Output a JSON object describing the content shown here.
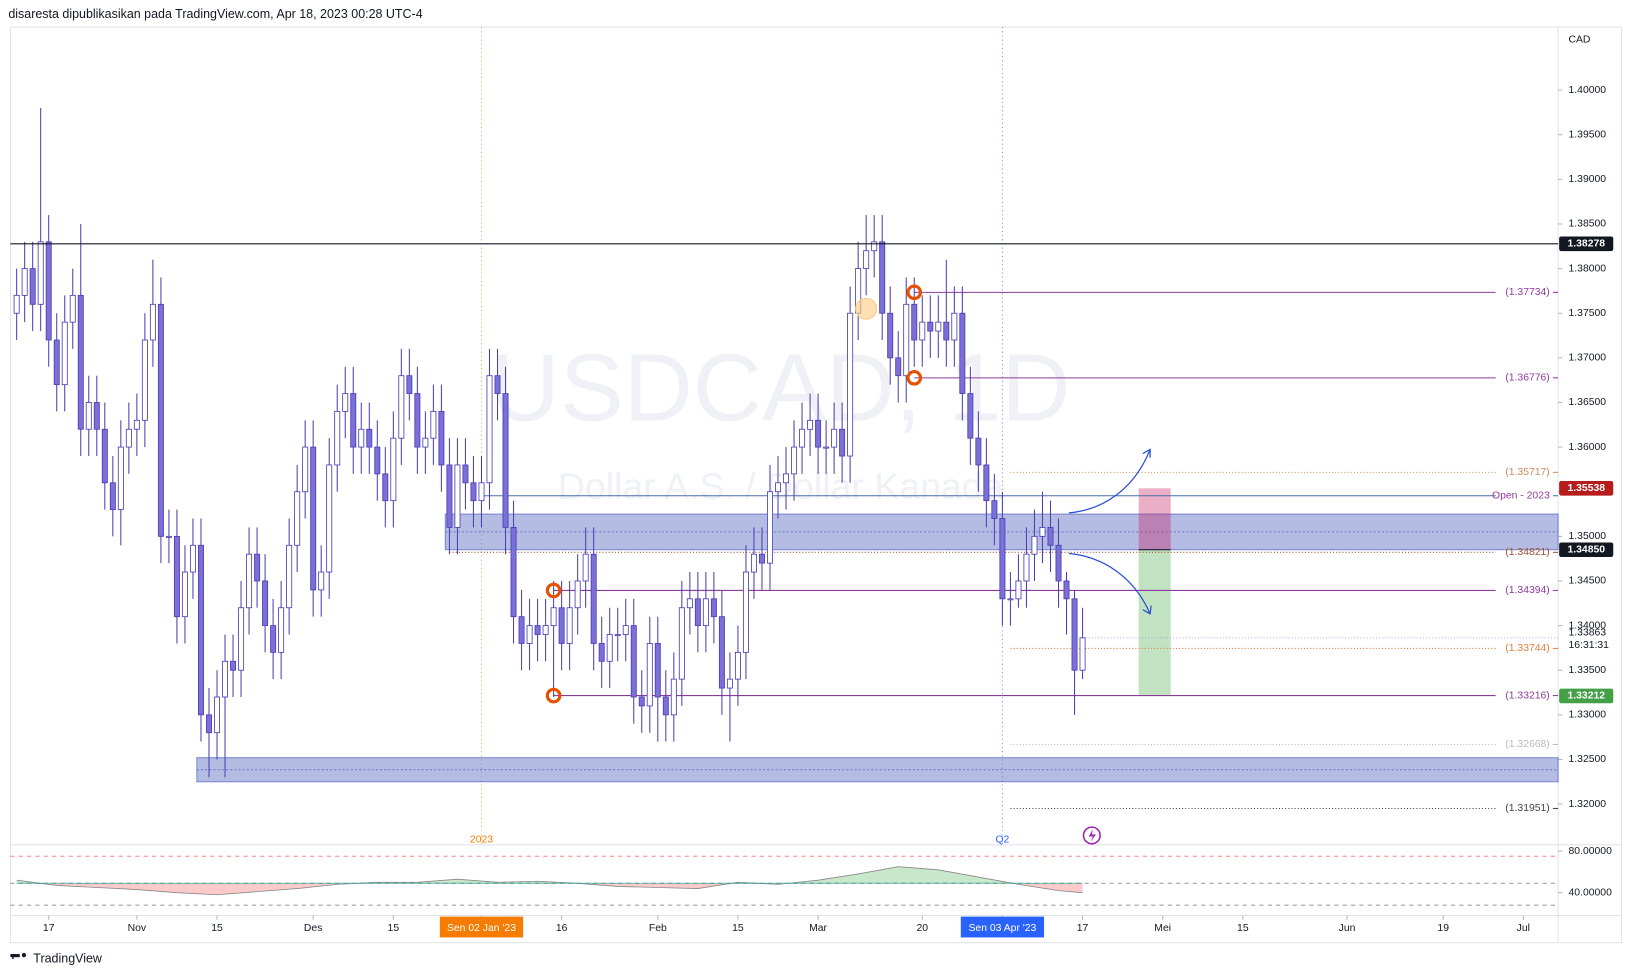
{
  "chart_data": {
    "type": "candlestick",
    "header": "disaresta dipublikasikan pada TradingView.com, Apr 18, 2023 00:28 UTC-4",
    "footer": "TradingView",
    "currency": "CAD",
    "watermark": "USDCAD, 1D",
    "watermark_sub": "Dollar A.S. / Dollar Kanada",
    "up_color": "#ffffff",
    "down_color": "#7b6fd8",
    "outline_color": "#4b3fb5",
    "open": [
      1.375,
      1.377,
      1.38,
      1.376,
      1.383,
      1.372,
      1.367,
      1.374,
      1.377,
      1.362,
      1.365,
      1.362,
      1.356,
      1.353,
      1.36,
      1.362,
      1.363,
      1.372,
      1.376,
      1.35,
      1.35,
      1.341,
      1.346,
      1.349,
      1.33,
      1.328,
      1.332,
      1.336,
      1.335,
      1.342,
      1.348,
      1.345,
      1.34,
      1.337,
      1.342,
      1.349,
      1.355,
      1.36,
      1.344,
      1.346,
      1.358,
      1.364,
      1.366,
      1.36,
      1.362,
      1.36,
      1.357,
      1.354,
      1.361,
      1.368,
      1.366,
      1.36,
      1.361,
      1.364,
      1.358,
      1.351,
      1.358,
      1.356,
      1.354,
      1.356,
      1.368,
      1.366,
      1.351,
      1.341,
      1.338,
      1.34,
      1.339,
      1.34,
      1.342,
      1.338,
      1.342,
      1.345,
      1.348,
      1.338,
      1.336,
      1.339,
      1.339,
      1.34,
      1.332,
      1.331,
      1.338,
      1.332,
      1.33,
      1.334,
      1.342,
      1.343,
      1.34,
      1.343,
      1.341,
      1.333,
      1.334,
      1.337,
      1.346,
      1.348,
      1.347,
      1.355,
      1.356,
      1.357,
      1.36,
      1.362,
      1.363,
      1.36,
      1.36,
      1.362,
      1.359,
      1.375,
      1.38,
      1.382,
      1.383,
      1.375,
      1.37,
      1.368,
      1.376,
      1.372,
      1.374,
      1.373,
      1.374,
      1.372,
      1.375,
      1.366,
      1.361,
      1.358,
      1.354,
      1.352,
      1.343,
      1.343,
      1.345,
      1.348,
      1.35,
      1.351,
      1.349,
      1.345,
      1.343,
      1.335
    ],
    "high": [
      1.38,
      1.383,
      1.383,
      1.398,
      1.386,
      1.375,
      1.377,
      1.38,
      1.385,
      1.368,
      1.368,
      1.365,
      1.359,
      1.363,
      1.365,
      1.366,
      1.375,
      1.381,
      1.379,
      1.353,
      1.353,
      1.349,
      1.352,
      1.352,
      1.333,
      1.335,
      1.339,
      1.339,
      1.345,
      1.351,
      1.351,
      1.348,
      1.343,
      1.345,
      1.352,
      1.358,
      1.363,
      1.363,
      1.349,
      1.361,
      1.367,
      1.369,
      1.369,
      1.365,
      1.365,
      1.363,
      1.36,
      1.364,
      1.371,
      1.371,
      1.369,
      1.364,
      1.367,
      1.367,
      1.361,
      1.361,
      1.361,
      1.359,
      1.359,
      1.371,
      1.371,
      1.369,
      1.354,
      1.344,
      1.343,
      1.343,
      1.343,
      1.345,
      1.345,
      1.345,
      1.348,
      1.351,
      1.351,
      1.341,
      1.342,
      1.342,
      1.343,
      1.343,
      1.335,
      1.341,
      1.341,
      1.335,
      1.337,
      1.345,
      1.346,
      1.346,
      1.346,
      1.346,
      1.344,
      1.337,
      1.34,
      1.349,
      1.351,
      1.351,
      1.358,
      1.359,
      1.36,
      1.363,
      1.365,
      1.366,
      1.366,
      1.363,
      1.365,
      1.365,
      1.378,
      1.383,
      1.386,
      1.386,
      1.386,
      1.378,
      1.373,
      1.379,
      1.379,
      1.377,
      1.377,
      1.377,
      1.381,
      1.378,
      1.378,
      1.369,
      1.364,
      1.361,
      1.357,
      1.355,
      1.346,
      1.348,
      1.351,
      1.353,
      1.355,
      1.354,
      1.352,
      1.346,
      1.344,
      1.342
    ],
    "low": [
      1.372,
      1.374,
      1.373,
      1.373,
      1.369,
      1.364,
      1.364,
      1.371,
      1.359,
      1.359,
      1.359,
      1.353,
      1.35,
      1.349,
      1.357,
      1.359,
      1.36,
      1.369,
      1.347,
      1.347,
      1.338,
      1.338,
      1.343,
      1.327,
      1.323,
      1.325,
      1.323,
      1.332,
      1.332,
      1.339,
      1.342,
      1.337,
      1.334,
      1.334,
      1.339,
      1.346,
      1.352,
      1.341,
      1.341,
      1.343,
      1.355,
      1.361,
      1.357,
      1.357,
      1.357,
      1.354,
      1.351,
      1.351,
      1.358,
      1.363,
      1.357,
      1.357,
      1.358,
      1.355,
      1.348,
      1.348,
      1.353,
      1.351,
      1.351,
      1.353,
      1.363,
      1.348,
      1.338,
      1.335,
      1.335,
      1.336,
      1.336,
      1.332,
      1.335,
      1.335,
      1.339,
      1.342,
      1.335,
      1.333,
      1.333,
      1.336,
      1.336,
      1.329,
      1.328,
      1.328,
      1.327,
      1.327,
      1.327,
      1.331,
      1.339,
      1.337,
      1.337,
      1.338,
      1.33,
      1.327,
      1.331,
      1.334,
      1.343,
      1.344,
      1.344,
      1.352,
      1.353,
      1.354,
      1.357,
      1.359,
      1.357,
      1.357,
      1.357,
      1.356,
      1.356,
      1.372,
      1.377,
      1.379,
      1.372,
      1.367,
      1.365,
      1.365,
      1.369,
      1.369,
      1.37,
      1.37,
      1.369,
      1.369,
      1.363,
      1.358,
      1.355,
      1.351,
      1.349,
      1.34,
      1.34,
      1.342,
      1.342,
      1.345,
      1.347,
      1.346,
      1.342,
      1.339,
      1.33,
      1.334
    ],
    "close": [
      1.377,
      1.38,
      1.376,
      1.383,
      1.372,
      1.367,
      1.374,
      1.377,
      1.362,
      1.365,
      1.362,
      1.356,
      1.353,
      1.36,
      1.362,
      1.363,
      1.372,
      1.376,
      1.35,
      1.35,
      1.341,
      1.346,
      1.349,
      1.33,
      1.328,
      1.332,
      1.336,
      1.335,
      1.342,
      1.348,
      1.345,
      1.34,
      1.337,
      1.342,
      1.349,
      1.355,
      1.36,
      1.344,
      1.346,
      1.358,
      1.364,
      1.366,
      1.36,
      1.362,
      1.36,
      1.357,
      1.354,
      1.361,
      1.368,
      1.366,
      1.36,
      1.361,
      1.364,
      1.358,
      1.351,
      1.358,
      1.356,
      1.354,
      1.356,
      1.368,
      1.366,
      1.351,
      1.341,
      1.338,
      1.34,
      1.339,
      1.34,
      1.342,
      1.338,
      1.342,
      1.345,
      1.348,
      1.338,
      1.336,
      1.339,
      1.339,
      1.34,
      1.332,
      1.331,
      1.338,
      1.332,
      1.33,
      1.334,
      1.342,
      1.343,
      1.34,
      1.343,
      1.341,
      1.333,
      1.334,
      1.337,
      1.346,
      1.348,
      1.347,
      1.355,
      1.356,
      1.357,
      1.36,
      1.362,
      1.363,
      1.36,
      1.36,
      1.362,
      1.359,
      1.375,
      1.38,
      1.382,
      1.383,
      1.375,
      1.37,
      1.368,
      1.376,
      1.372,
      1.374,
      1.373,
      1.374,
      1.372,
      1.375,
      1.366,
      1.361,
      1.358,
      1.354,
      1.352,
      1.343,
      1.343,
      1.345,
      1.348,
      1.35,
      1.351,
      1.349,
      1.345,
      1.343,
      1.335,
      1.33863
    ],
    "last_label": "1.33863",
    "countdown": "16:31:31",
    "xlim": [
      0,
      192
    ],
    "xticks": [
      {
        "value": 4,
        "label": "17"
      },
      {
        "value": 15,
        "label": "Nov"
      },
      {
        "value": 25,
        "label": "15"
      },
      {
        "value": 37,
        "label": "Des"
      },
      {
        "value": 47,
        "label": "15"
      },
      {
        "value": 58,
        "label": "Sen 02 Jan '23",
        "color": "#f57c00"
      },
      {
        "value": 68,
        "label": "16"
      },
      {
        "value": 80,
        "label": "Feb"
      },
      {
        "value": 90,
        "label": "15"
      },
      {
        "value": 100,
        "label": "Mar"
      },
      {
        "value": 113,
        "label": "20"
      },
      {
        "value": 123,
        "label": "Sen 03 Apr '23",
        "color": "#2962ff"
      },
      {
        "value": 133,
        "label": "17"
      },
      {
        "value": 143,
        "label": "Mei"
      },
      {
        "value": 153,
        "label": "15"
      },
      {
        "value": 166,
        "label": "Jun"
      },
      {
        "value": 178,
        "label": "19"
      },
      {
        "value": 188,
        "label": "Jul"
      }
    ],
    "session_marks": [
      {
        "x": 58,
        "label": "2023",
        "color": "#f57c00"
      },
      {
        "x": 123,
        "label": "Q2",
        "color": "#2962ff"
      }
    ],
    "ylim": [
      1.318,
      1.4066
    ],
    "yticks": [
      {
        "value": 1.32,
        "label": "1.32000"
      },
      {
        "value": 1.325,
        "label": "1.32500"
      },
      {
        "value": 1.33,
        "label": "1.33000"
      },
      {
        "value": 1.335,
        "label": "1.33500"
      },
      {
        "value": 1.34,
        "label": "1.34000"
      },
      {
        "value": 1.345,
        "label": "1.34500"
      },
      {
        "value": 1.35,
        "label": "1.35000"
      },
      {
        "value": 1.355,
        "label": "1.35500"
      },
      {
        "value": 1.36,
        "label": "1.36000"
      },
      {
        "value": 1.365,
        "label": "1.36500"
      },
      {
        "value": 1.37,
        "label": "1.37000"
      },
      {
        "value": 1.375,
        "label": "1.37500"
      },
      {
        "value": 1.38,
        "label": "1.38000"
      },
      {
        "value": 1.385,
        "label": "1.38500"
      },
      {
        "value": 1.39,
        "label": "1.39000"
      },
      {
        "value": 1.395,
        "label": "1.39500"
      },
      {
        "value": 1.4,
        "label": "1.40000"
      }
    ],
    "levels": [
      {
        "value": 1.37734,
        "label": "(1.37734)",
        "start": 112,
        "color": "#8e3a9d",
        "dash": false
      },
      {
        "value": 1.36776,
        "label": "(1.36776)",
        "start": 112,
        "color": "#8e3a9d",
        "dash": false
      },
      {
        "value": 1.35717,
        "label": "(1.35717)",
        "start": 124,
        "color": "#d08a5a",
        "dash": true
      },
      {
        "value": 1.35455,
        "label": "Open - 2023",
        "start": 58,
        "color": "#4a6fa5",
        "dash": false
      },
      {
        "value": 1.34821,
        "label": "(1.34821)",
        "start": 54,
        "color": "#a0522d",
        "dash": true
      },
      {
        "value": 1.34394,
        "label": "(1.34394)",
        "start": 67,
        "color": "#8e3a9d",
        "dash": false
      },
      {
        "value": 1.33744,
        "label": "(1.33744)",
        "start": 124,
        "color": "#e08040",
        "dash": true
      },
      {
        "value": 1.33216,
        "label": "(1.33216)",
        "start": 67,
        "color": "#8e3a9d",
        "dash": false
      },
      {
        "value": 1.32668,
        "label": "(1.32668)",
        "start": 124,
        "color": "#bbbbbb",
        "dash": true
      },
      {
        "value": 1.31951,
        "label": "(1.31951)",
        "start": 124,
        "color": "#444444",
        "dash": true
      }
    ],
    "price_tags": [
      {
        "value": 1.38278,
        "label": "1.38278",
        "color": "#131722",
        "line": true
      },
      {
        "value": 1.35538,
        "label": "1.35538",
        "color": "#b71c1c",
        "line": false
      },
      {
        "value": 1.3485,
        "label": "1.34850",
        "color": "#131722",
        "line": false
      },
      {
        "value": 1.33212,
        "label": "1.33212",
        "color": "#43a047",
        "line": false
      }
    ],
    "zones": [
      {
        "from": 1.3485,
        "to": 1.3525,
        "start": 54
      },
      {
        "from": 1.3225,
        "to": 1.3252,
        "start": 23
      }
    ],
    "markers": [
      {
        "x": 112,
        "y": 1.37734,
        "color": "#e65100"
      },
      {
        "x": 112,
        "y": 1.36776,
        "color": "#e65100"
      },
      {
        "x": 67,
        "y": 1.34394,
        "color": "#e65100"
      },
      {
        "x": 67,
        "y": 1.33216,
        "color": "#e65100"
      },
      {
        "x": 106,
        "y": 1.3755,
        "color": "#ffcc80"
      }
    ],
    "position": {
      "start": 140,
      "end": 144,
      "entry": 1.3485,
      "stop": 1.35538,
      "target": 1.33212
    },
    "indicator": {
      "x": [
        0,
        5,
        10,
        15,
        20,
        25,
        30,
        35,
        40,
        45,
        50,
        55,
        60,
        65,
        70,
        75,
        80,
        85,
        90,
        95,
        100,
        105,
        110,
        115,
        120,
        125,
        130,
        133
      ],
      "values": [
        52,
        47,
        45,
        43,
        40,
        38,
        41,
        44,
        48,
        50,
        50,
        53,
        50,
        51,
        49,
        46,
        45,
        44,
        50,
        48,
        52,
        58,
        65,
        62,
        55,
        48,
        42,
        40
      ],
      "base": 49,
      "bands": [
        75,
        49,
        28
      ],
      "ylim": [
        20,
        86
      ],
      "yticks": [
        {
          "value": 80,
          "label": "80.00000"
        },
        {
          "value": 40,
          "label": "40.00000"
        }
      ]
    }
  }
}
